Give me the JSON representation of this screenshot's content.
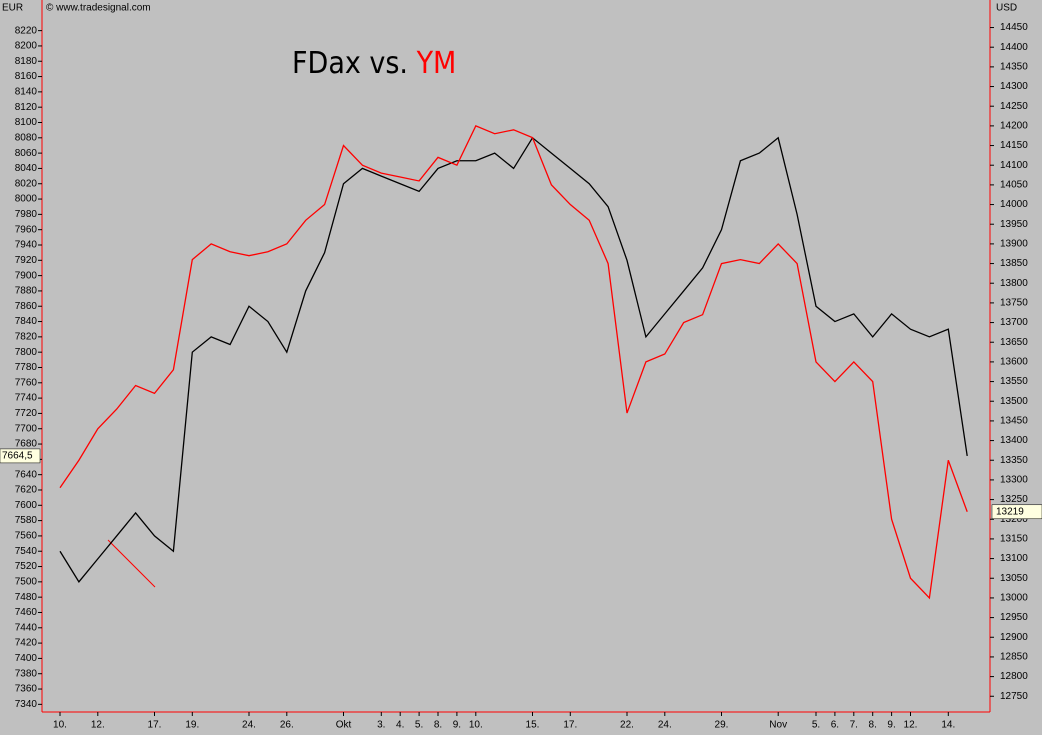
{
  "chart_data": {
    "type": "line",
    "title": [
      {
        "text": "FDax vs.",
        "color": "#000000"
      },
      {
        "text": "YM",
        "color": "#ff0000"
      }
    ],
    "source": "© www.tradesignal.com",
    "y_unit": "EUR",
    "y2_unit": "USD",
    "categories": [
      "10.",
      null,
      "12.",
      null,
      null,
      "17.",
      null,
      "19.",
      null,
      null,
      "24.",
      null,
      "26.",
      null,
      null,
      "Okt",
      null,
      "3.",
      "4.",
      "5.",
      "8.",
      "9.",
      "10.",
      null,
      null,
      "15.",
      null,
      "17.",
      null,
      null,
      "22.",
      null,
      "24.",
      null,
      null,
      "29.",
      null,
      null,
      "Nov",
      null,
      "5.",
      "6.",
      "7.",
      "8.",
      "9.",
      "12.",
      null,
      "14.",
      null
    ],
    "series": [
      {
        "name": "FDax",
        "color": "#000000",
        "axis": "y",
        "values": [
          7540,
          7500,
          7530,
          7560,
          7590,
          7560,
          7540,
          7800,
          7820,
          7810,
          7860,
          7840,
          7800,
          7880,
          7930,
          8020,
          8040,
          8030,
          8020,
          8010,
          8040,
          8050,
          8050,
          8060,
          8040,
          8080,
          8060,
          8040,
          8020,
          7990,
          7920,
          7820,
          7850,
          7880,
          7910,
          7960,
          8050,
          8060,
          8080,
          7980,
          7860,
          7840,
          7850,
          7820,
          7850,
          7830,
          7820,
          7830,
          7664.5
        ],
        "last": {
          "value": 7664.5,
          "label": "7664,5"
        }
      },
      {
        "name": "YM",
        "color": "#ff0000",
        "axis": "y2",
        "values": [
          13280,
          13350,
          13430,
          13480,
          13540,
          13520,
          13580,
          13860,
          13900,
          13880,
          13870,
          13880,
          13900,
          13960,
          14000,
          14150,
          14100,
          14080,
          14070,
          14060,
          14120,
          14100,
          14200,
          14180,
          14190,
          14170,
          14050,
          14000,
          13960,
          13850,
          13470,
          13600,
          13620,
          13700,
          13720,
          13850,
          13860,
          13850,
          13900,
          13850,
          13600,
          13550,
          13600,
          13550,
          13200,
          13050,
          13000,
          13350,
          13219
        ],
        "last": {
          "value": 13219,
          "label": "13219"
        }
      }
    ],
    "ylim": [
      7330,
      8260
    ],
    "yticks": [
      7340,
      7360,
      7380,
      7400,
      7420,
      7440,
      7460,
      7480,
      7500,
      7520,
      7540,
      7560,
      7580,
      7600,
      7620,
      7640,
      7660,
      7680,
      7700,
      7720,
      7740,
      7760,
      7780,
      7800,
      7820,
      7840,
      7860,
      7880,
      7900,
      7920,
      7940,
      7960,
      7980,
      8000,
      8020,
      8040,
      8060,
      8080,
      8100,
      8120,
      8140,
      8160,
      8180,
      8200,
      8220
    ],
    "y2lim": [
      12710,
      14520
    ],
    "y2ticks": [
      12750,
      12800,
      12850,
      12900,
      12950,
      13000,
      13050,
      13100,
      13150,
      13200,
      13250,
      13300,
      13350,
      13400,
      13450,
      13500,
      13550,
      13600,
      13650,
      13700,
      13750,
      13800,
      13850,
      13900,
      13950,
      14000,
      14050,
      14100,
      14150,
      14200,
      14250,
      14300,
      14350,
      14400,
      14450
    ]
  }
}
